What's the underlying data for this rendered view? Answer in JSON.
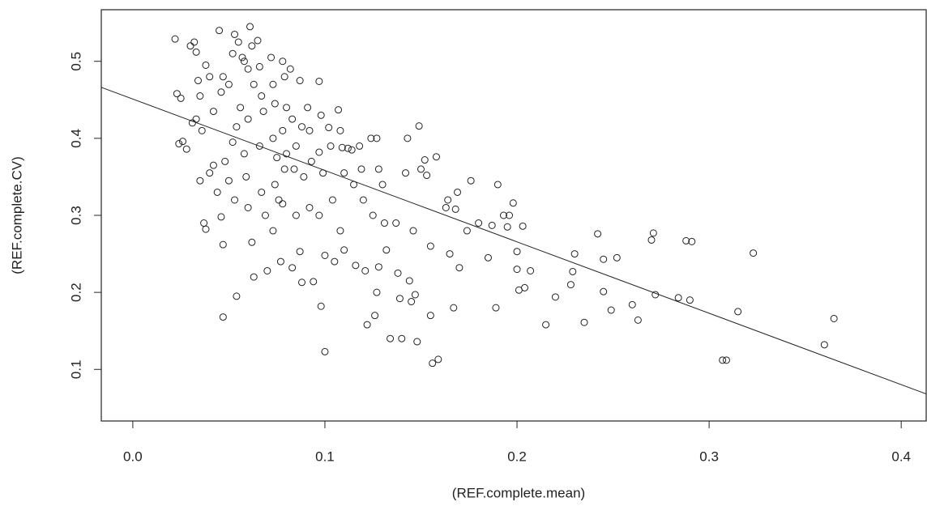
{
  "chart_data": {
    "type": "scatter",
    "x_label": "(REF.complete.mean)",
    "y_label": "(REF.complete.CV)",
    "xlim": [
      -0.0164,
      0.413
    ],
    "ylim": [
      0.033,
      0.567
    ],
    "xticks": [
      {
        "value": 0,
        "label": "0.0"
      },
      0.1,
      0.2,
      0.3,
      0.4
    ],
    "yticks": [
      0.1,
      0.2,
      0.3,
      0.4,
      0.5
    ],
    "color": "#222222",
    "regression": {
      "intercept": 0.451,
      "slope": -0.927
    },
    "x": [
      0.022,
      0.023,
      0.025,
      0.024,
      0.026,
      0.028,
      0.03,
      0.032,
      0.033,
      0.034,
      0.035,
      0.031,
      0.033,
      0.036,
      0.038,
      0.04,
      0.042,
      0.035,
      0.037,
      0.038,
      0.04,
      0.042,
      0.044,
      0.045,
      0.046,
      0.047,
      0.048,
      0.047,
      0.047,
      0.046,
      0.05,
      0.052,
      0.053,
      0.055,
      0.056,
      0.054,
      0.052,
      0.05,
      0.053,
      0.054,
      0.057,
      0.058,
      0.06,
      0.061,
      0.062,
      0.063,
      0.06,
      0.058,
      0.059,
      0.06,
      0.062,
      0.063,
      0.065,
      0.066,
      0.067,
      0.068,
      0.066,
      0.067,
      0.069,
      0.07,
      0.072,
      0.073,
      0.074,
      0.073,
      0.075,
      0.074,
      0.073,
      0.076,
      0.078,
      0.079,
      0.08,
      0.078,
      0.08,
      0.079,
      0.078,
      0.077,
      0.082,
      0.083,
      0.085,
      0.084,
      0.085,
      0.083,
      0.087,
      0.088,
      0.089,
      0.087,
      0.088,
      0.091,
      0.092,
      0.093,
      0.092,
      0.094,
      0.097,
      0.098,
      0.097,
      0.099,
      0.097,
      0.098,
      0.1,
      0.1,
      0.102,
      0.103,
      0.104,
      0.105,
      0.107,
      0.108,
      0.109,
      0.11,
      0.108,
      0.11,
      0.112,
      0.114,
      0.115,
      0.116,
      0.118,
      0.119,
      0.12,
      0.121,
      0.122,
      0.124,
      0.125,
      0.127,
      0.128,
      0.128,
      0.127,
      0.126,
      0.13,
      0.131,
      0.132,
      0.134,
      0.137,
      0.138,
      0.139,
      0.14,
      0.142,
      0.143,
      0.144,
      0.145,
      0.146,
      0.147,
      0.148,
      0.149,
      0.15,
      0.152,
      0.153,
      0.155,
      0.155,
      0.156,
      0.158,
      0.159,
      0.163,
      0.164,
      0.165,
      0.167,
      0.168,
      0.169,
      0.17,
      0.174,
      0.176,
      0.18,
      0.185,
      0.187,
      0.189,
      0.19,
      0.193,
      0.195,
      0.196,
      0.198,
      0.2,
      0.2,
      0.201,
      0.203,
      0.204,
      0.207,
      0.215,
      0.22,
      0.228,
      0.229,
      0.23,
      0.235,
      0.242,
      0.245,
      0.245,
      0.249,
      0.252,
      0.26,
      0.263,
      0.27,
      0.271,
      0.272,
      0.284,
      0.288,
      0.29,
      0.291,
      0.307,
      0.309,
      0.315,
      0.323,
      0.36,
      0.365
    ],
    "y": [
      0.529,
      0.458,
      0.452,
      0.393,
      0.396,
      0.386,
      0.52,
      0.525,
      0.512,
      0.475,
      0.455,
      0.42,
      0.425,
      0.41,
      0.495,
      0.48,
      0.435,
      0.345,
      0.29,
      0.282,
      0.355,
      0.365,
      0.33,
      0.54,
      0.46,
      0.48,
      0.37,
      0.262,
      0.168,
      0.298,
      0.47,
      0.51,
      0.535,
      0.525,
      0.44,
      0.415,
      0.395,
      0.345,
      0.32,
      0.195,
      0.505,
      0.5,
      0.49,
      0.545,
      0.52,
      0.47,
      0.425,
      0.38,
      0.35,
      0.31,
      0.265,
      0.22,
      0.527,
      0.493,
      0.455,
      0.435,
      0.39,
      0.33,
      0.3,
      0.228,
      0.505,
      0.47,
      0.445,
      0.4,
      0.375,
      0.34,
      0.28,
      0.32,
      0.5,
      0.48,
      0.44,
      0.41,
      0.38,
      0.36,
      0.315,
      0.24,
      0.49,
      0.425,
      0.39,
      0.36,
      0.3,
      0.232,
      0.475,
      0.415,
      0.35,
      0.253,
      0.213,
      0.44,
      0.41,
      0.37,
      0.31,
      0.214,
      0.474,
      0.43,
      0.382,
      0.355,
      0.3,
      0.182,
      0.123,
      0.248,
      0.414,
      0.39,
      0.32,
      0.24,
      0.437,
      0.41,
      0.388,
      0.355,
      0.28,
      0.255,
      0.387,
      0.385,
      0.34,
      0.235,
      0.39,
      0.36,
      0.32,
      0.228,
      0.158,
      0.4,
      0.3,
      0.4,
      0.36,
      0.233,
      0.2,
      0.17,
      0.34,
      0.29,
      0.255,
      0.14,
      0.29,
      0.225,
      0.192,
      0.14,
      0.355,
      0.4,
      0.215,
      0.188,
      0.28,
      0.197,
      0.136,
      0.416,
      0.36,
      0.372,
      0.352,
      0.26,
      0.17,
      0.108,
      0.376,
      0.113,
      0.31,
      0.32,
      0.25,
      0.18,
      0.308,
      0.33,
      0.232,
      0.28,
      0.345,
      0.29,
      0.245,
      0.287,
      0.18,
      0.34,
      0.3,
      0.285,
      0.3,
      0.316,
      0.253,
      0.23,
      0.203,
      0.286,
      0.206,
      0.228,
      0.158,
      0.194,
      0.21,
      0.227,
      0.25,
      0.161,
      0.276,
      0.243,
      0.201,
      0.177,
      0.245,
      0.184,
      0.164,
      0.268,
      0.277,
      0.197,
      0.193,
      0.267,
      0.19,
      0.266,
      0.112,
      0.112,
      0.175,
      0.251,
      0.132,
      0.166
    ]
  }
}
